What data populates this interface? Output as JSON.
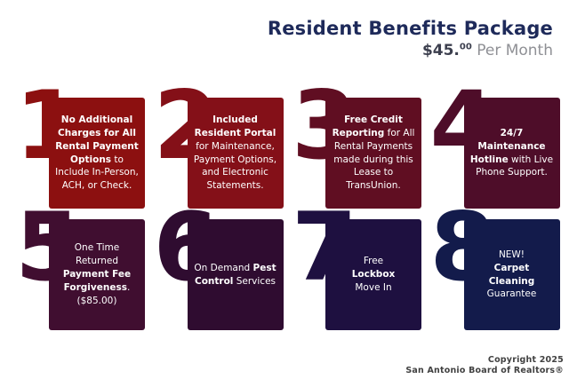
{
  "header": {
    "title": "Resident Benefits Package",
    "price_dollars": "$45.",
    "price_cents": "00",
    "price_suffix": " Per Month"
  },
  "cards": [
    {
      "number": "1",
      "color": "#8c1010",
      "segments": [
        {
          "text": "No Additional Charges for All Rental Payment Options",
          "bold": true
        },
        {
          "text": " to Include In-Person, ACH, or Check.",
          "bold": false
        }
      ]
    },
    {
      "number": "2",
      "color": "#841018",
      "segments": [
        {
          "text": "Included Resident Portal",
          "bold": true
        },
        {
          "text": " for Maintenance, Payment Options, and Electronic Statements.",
          "bold": false
        }
      ]
    },
    {
      "number": "3",
      "color": "#600e22",
      "segments": [
        {
          "text": "Free Credit Reporting",
          "bold": true
        },
        {
          "text": " for All Rental Payments made during this Lease to TransUnion.",
          "bold": false
        }
      ]
    },
    {
      "number": "4",
      "color": "#4e0d29",
      "segments": [
        {
          "text": "24/7",
          "bold": true,
          "br": true
        },
        {
          "text": "Maintenance Hotline",
          "bold": true
        },
        {
          "text": " with Live Phone Support.",
          "bold": false
        }
      ]
    },
    {
      "number": "5",
      "color": "#400e30",
      "segments": [
        {
          "text": "One Time Returned ",
          "bold": false
        },
        {
          "text": "Payment Fee Forgiveness",
          "bold": true
        },
        {
          "text": ". ($85.00)",
          "bold": false
        }
      ]
    },
    {
      "number": "6",
      "color": "#2f0c30",
      "segments": [
        {
          "text": "On Demand ",
          "bold": false
        },
        {
          "text": "Pest Control",
          "bold": true
        },
        {
          "text": " Services",
          "bold": false
        }
      ]
    },
    {
      "number": "7",
      "color": "#1e1040",
      "segments": [
        {
          "text": "Free",
          "bold": false,
          "br": true
        },
        {
          "text": "Lockbox",
          "bold": true,
          "br": true
        },
        {
          "text": "Move In",
          "bold": false
        }
      ]
    },
    {
      "number": "8",
      "color": "#131b4b",
      "segments": [
        {
          "text": "NEW!",
          "bold": false,
          "br": true
        },
        {
          "text": "Carpet",
          "bold": true,
          "br": true
        },
        {
          "text": "Cleaning",
          "bold": true,
          "br": true
        },
        {
          "text": "Guarantee",
          "bold": false
        }
      ]
    }
  ],
  "footer": {
    "line1": "Copyright 2025",
    "line2": "San Antonio Board of Realtors®"
  }
}
